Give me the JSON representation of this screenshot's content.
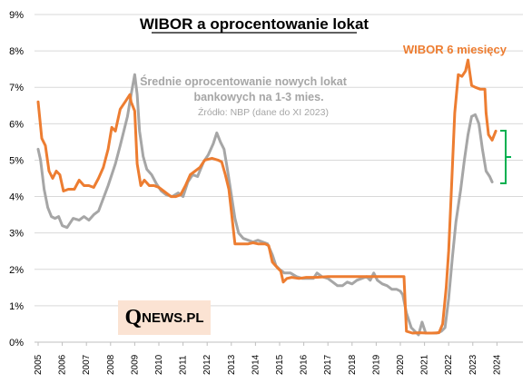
{
  "chart_data": {
    "type": "line",
    "title": "WIBOR a oprocentowanie lokat",
    "xlabel": "",
    "ylabel": "",
    "ylim": [
      0,
      9
    ],
    "xlim": [
      2005,
      2025
    ],
    "y_ticks": [
      "0%",
      "1%",
      "2%",
      "3%",
      "4%",
      "5%",
      "6%",
      "7%",
      "8%",
      "9%"
    ],
    "x_ticks": [
      "2005",
      "2006",
      "2007",
      "2008",
      "2009",
      "2010",
      "2011",
      "2012",
      "2013",
      "2014",
      "2015",
      "2016",
      "2017",
      "2018",
      "2019",
      "2020",
      "2021",
      "2022",
      "2023",
      "2024"
    ],
    "grid": true,
    "series": [
      {
        "name": "WIBOR 6 miesięcy",
        "color": "#ed7d31",
        "points": [
          [
            2005.0,
            6.6
          ],
          [
            2005.15,
            5.6
          ],
          [
            2005.3,
            5.4
          ],
          [
            2005.45,
            4.7
          ],
          [
            2005.6,
            4.5
          ],
          [
            2005.75,
            4.7
          ],
          [
            2005.9,
            4.6
          ],
          [
            2006.05,
            4.15
          ],
          [
            2006.25,
            4.2
          ],
          [
            2006.5,
            4.2
          ],
          [
            2006.7,
            4.45
          ],
          [
            2006.9,
            4.3
          ],
          [
            2007.1,
            4.3
          ],
          [
            2007.3,
            4.25
          ],
          [
            2007.5,
            4.5
          ],
          [
            2007.7,
            4.8
          ],
          [
            2007.9,
            5.3
          ],
          [
            2008.05,
            5.9
          ],
          [
            2008.2,
            5.8
          ],
          [
            2008.4,
            6.4
          ],
          [
            2008.6,
            6.6
          ],
          [
            2008.8,
            6.8
          ],
          [
            2008.85,
            6.6
          ],
          [
            2009.0,
            6.35
          ],
          [
            2009.1,
            4.9
          ],
          [
            2009.25,
            4.3
          ],
          [
            2009.4,
            4.45
          ],
          [
            2009.6,
            4.3
          ],
          [
            2009.8,
            4.3
          ],
          [
            2010.0,
            4.25
          ],
          [
            2010.2,
            4.15
          ],
          [
            2010.5,
            4.0
          ],
          [
            2010.7,
            4.0
          ],
          [
            2010.9,
            4.05
          ],
          [
            2011.1,
            4.3
          ],
          [
            2011.3,
            4.6
          ],
          [
            2011.5,
            4.7
          ],
          [
            2011.7,
            4.8
          ],
          [
            2011.9,
            5.0
          ],
          [
            2012.2,
            5.05
          ],
          [
            2012.45,
            5.0
          ],
          [
            2012.6,
            4.95
          ],
          [
            2012.75,
            4.6
          ],
          [
            2012.9,
            4.2
          ],
          [
            2013.0,
            3.6
          ],
          [
            2013.15,
            2.7
          ],
          [
            2013.3,
            2.7
          ],
          [
            2013.5,
            2.7
          ],
          [
            2013.7,
            2.7
          ],
          [
            2013.9,
            2.73
          ],
          [
            2014.1,
            2.7
          ],
          [
            2014.4,
            2.7
          ],
          [
            2014.55,
            2.65
          ],
          [
            2014.7,
            2.2
          ],
          [
            2014.9,
            2.05
          ],
          [
            2015.05,
            1.95
          ],
          [
            2015.15,
            1.65
          ],
          [
            2015.3,
            1.75
          ],
          [
            2015.5,
            1.78
          ],
          [
            2015.8,
            1.75
          ],
          [
            2016.1,
            1.78
          ],
          [
            2016.3,
            1.78
          ],
          [
            2016.5,
            1.78
          ],
          [
            2017.0,
            1.8
          ],
          [
            2017.5,
            1.8
          ],
          [
            2018.0,
            1.8
          ],
          [
            2018.5,
            1.8
          ],
          [
            2019.0,
            1.8
          ],
          [
            2019.5,
            1.8
          ],
          [
            2019.9,
            1.8
          ],
          [
            2020.15,
            1.8
          ],
          [
            2020.25,
            0.3
          ],
          [
            2020.5,
            0.25
          ],
          [
            2020.8,
            0.26
          ],
          [
            2021.1,
            0.25
          ],
          [
            2021.3,
            0.25
          ],
          [
            2021.6,
            0.26
          ],
          [
            2021.75,
            0.5
          ],
          [
            2021.9,
            1.5
          ],
          [
            2022.0,
            2.5
          ],
          [
            2022.1,
            4.0
          ],
          [
            2022.25,
            6.3
          ],
          [
            2022.4,
            7.35
          ],
          [
            2022.55,
            7.3
          ],
          [
            2022.7,
            7.45
          ],
          [
            2022.8,
            7.75
          ],
          [
            2022.95,
            7.05
          ],
          [
            2023.1,
            7.0
          ],
          [
            2023.3,
            6.95
          ],
          [
            2023.5,
            6.95
          ],
          [
            2023.55,
            6.3
          ],
          [
            2023.65,
            5.7
          ],
          [
            2023.8,
            5.55
          ],
          [
            2023.95,
            5.8
          ]
        ]
      },
      {
        "name": "Średnie oprocentowanie nowych lokat bankowych na 1-3 mies.",
        "color": "#a6a6a6",
        "points": [
          [
            2005.0,
            5.3
          ],
          [
            2005.1,
            5.0
          ],
          [
            2005.25,
            4.2
          ],
          [
            2005.4,
            3.7
          ],
          [
            2005.55,
            3.45
          ],
          [
            2005.7,
            3.4
          ],
          [
            2005.85,
            3.45
          ],
          [
            2006.0,
            3.2
          ],
          [
            2006.2,
            3.15
          ],
          [
            2006.45,
            3.4
          ],
          [
            2006.7,
            3.35
          ],
          [
            2006.9,
            3.45
          ],
          [
            2007.1,
            3.35
          ],
          [
            2007.3,
            3.5
          ],
          [
            2007.5,
            3.6
          ],
          [
            2007.7,
            3.95
          ],
          [
            2007.9,
            4.3
          ],
          [
            2008.05,
            4.6
          ],
          [
            2008.2,
            4.9
          ],
          [
            2008.4,
            5.4
          ],
          [
            2008.55,
            5.8
          ],
          [
            2008.7,
            6.2
          ],
          [
            2008.85,
            6.8
          ],
          [
            2009.0,
            7.35
          ],
          [
            2009.1,
            6.8
          ],
          [
            2009.2,
            5.8
          ],
          [
            2009.35,
            5.1
          ],
          [
            2009.5,
            4.75
          ],
          [
            2009.7,
            4.6
          ],
          [
            2009.9,
            4.35
          ],
          [
            2010.1,
            4.15
          ],
          [
            2010.3,
            4.05
          ],
          [
            2010.55,
            4.0
          ],
          [
            2010.8,
            4.1
          ],
          [
            2011.0,
            4.0
          ],
          [
            2011.2,
            4.4
          ],
          [
            2011.4,
            4.6
          ],
          [
            2011.6,
            4.55
          ],
          [
            2011.85,
            4.95
          ],
          [
            2012.05,
            5.15
          ],
          [
            2012.25,
            5.45
          ],
          [
            2012.4,
            5.75
          ],
          [
            2012.55,
            5.5
          ],
          [
            2012.7,
            5.3
          ],
          [
            2012.85,
            4.7
          ],
          [
            2013.0,
            4.05
          ],
          [
            2013.15,
            3.4
          ],
          [
            2013.3,
            3.0
          ],
          [
            2013.5,
            2.85
          ],
          [
            2013.7,
            2.8
          ],
          [
            2013.9,
            2.75
          ],
          [
            2014.1,
            2.8
          ],
          [
            2014.3,
            2.75
          ],
          [
            2014.5,
            2.7
          ],
          [
            2014.7,
            2.4
          ],
          [
            2014.85,
            2.1
          ],
          [
            2015.0,
            2.0
          ],
          [
            2015.2,
            1.9
          ],
          [
            2015.45,
            1.9
          ],
          [
            2015.7,
            1.8
          ],
          [
            2015.95,
            1.75
          ],
          [
            2016.2,
            1.75
          ],
          [
            2016.4,
            1.75
          ],
          [
            2016.55,
            1.9
          ],
          [
            2016.75,
            1.8
          ],
          [
            2017.0,
            1.75
          ],
          [
            2017.2,
            1.65
          ],
          [
            2017.4,
            1.55
          ],
          [
            2017.6,
            1.55
          ],
          [
            2017.8,
            1.65
          ],
          [
            2018.0,
            1.6
          ],
          [
            2018.2,
            1.7
          ],
          [
            2018.4,
            1.75
          ],
          [
            2018.6,
            1.8
          ],
          [
            2018.75,
            1.7
          ],
          [
            2018.9,
            1.9
          ],
          [
            2019.05,
            1.7
          ],
          [
            2019.25,
            1.6
          ],
          [
            2019.45,
            1.55
          ],
          [
            2019.65,
            1.45
          ],
          [
            2019.85,
            1.45
          ],
          [
            2020.0,
            1.4
          ],
          [
            2020.1,
            1.3
          ],
          [
            2020.25,
            0.8
          ],
          [
            2020.45,
            0.4
          ],
          [
            2020.6,
            0.3
          ],
          [
            2020.75,
            0.2
          ],
          [
            2020.9,
            0.55
          ],
          [
            2021.05,
            0.25
          ],
          [
            2021.3,
            0.25
          ],
          [
            2021.5,
            0.25
          ],
          [
            2021.7,
            0.3
          ],
          [
            2021.85,
            0.4
          ],
          [
            2022.0,
            1.2
          ],
          [
            2022.15,
            2.3
          ],
          [
            2022.3,
            3.3
          ],
          [
            2022.5,
            4.2
          ],
          [
            2022.65,
            5.0
          ],
          [
            2022.8,
            5.7
          ],
          [
            2022.95,
            6.2
          ],
          [
            2023.1,
            6.25
          ],
          [
            2023.25,
            6.0
          ],
          [
            2023.4,
            5.3
          ],
          [
            2023.55,
            4.7
          ],
          [
            2023.7,
            4.55
          ],
          [
            2023.8,
            4.4
          ]
        ]
      }
    ],
    "annotations": [
      {
        "text": "WIBOR 6 miesięcy",
        "color": "#ed7d31"
      },
      {
        "text_lines": [
          "Średnie oprocentowanie nowych lokat",
          "bankowych na 1-3 mies."
        ],
        "color": "#a6a6a6"
      },
      {
        "text": "Źródło: NBP (dane do XI 2023)",
        "color": "#a6a6a6"
      },
      {
        "type": "bracket",
        "from": 4.4,
        "to": 5.8,
        "color": "#00b050"
      }
    ]
  },
  "logo": {
    "initial": "Q",
    "rest": "NEWS.PL"
  }
}
